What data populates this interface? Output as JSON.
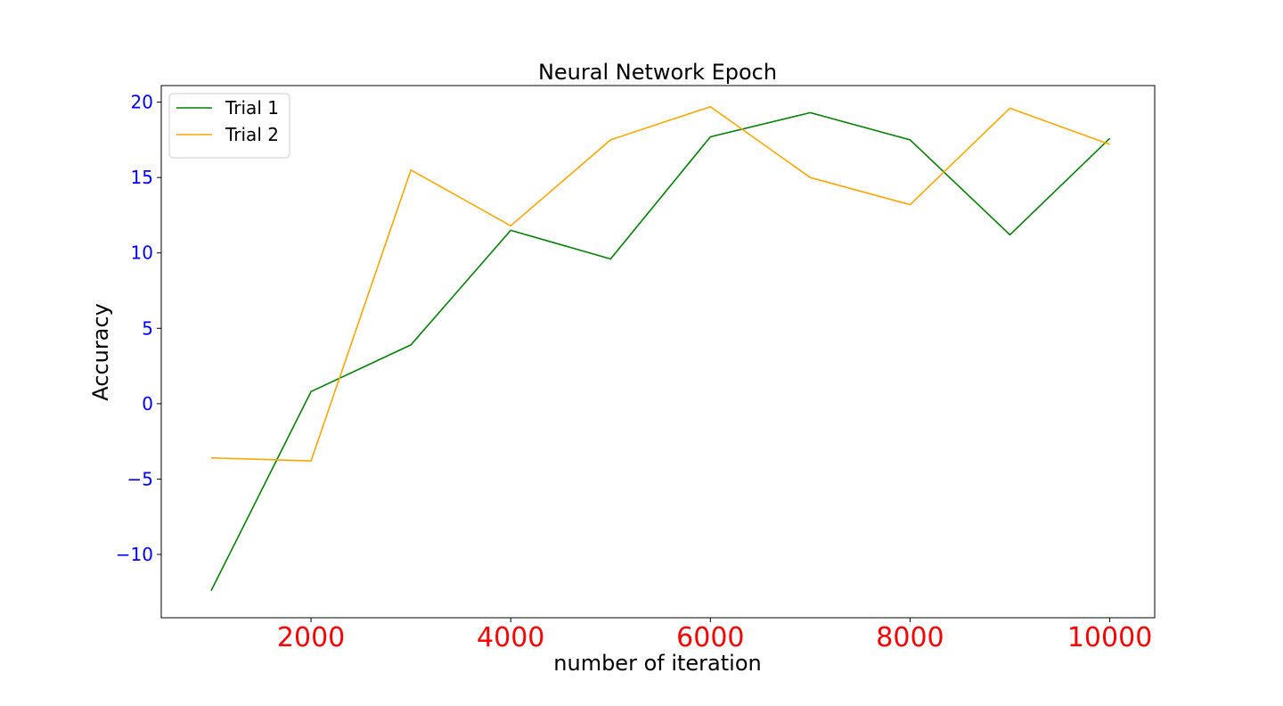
{
  "chart_data": {
    "type": "line",
    "title": "Neural Network Epoch",
    "xlabel": "number of iteration",
    "ylabel": "Accuracy",
    "x": [
      1000,
      2000,
      3000,
      4000,
      5000,
      6000,
      7000,
      8000,
      9000,
      10000
    ],
    "series": [
      {
        "name": "Trial 1",
        "color": "#008000",
        "values": [
          -12.4,
          0.8,
          3.9,
          11.5,
          9.6,
          17.7,
          19.3,
          17.5,
          11.2,
          17.6
        ]
      },
      {
        "name": "Trial 2",
        "color": "#FFA500",
        "values": [
          -3.6,
          -3.8,
          15.5,
          11.8,
          17.5,
          19.7,
          15.0,
          13.2,
          19.6,
          17.2
        ]
      }
    ],
    "xlim": [
      500,
      10450
    ],
    "ylim": [
      -14.2,
      21.1
    ],
    "xticks": [
      2000,
      4000,
      6000,
      8000,
      10000
    ],
    "xtick_labels": [
      "2000",
      "4000",
      "6000",
      "8000",
      "10000"
    ],
    "xtick_color": "#FF0000",
    "yticks": [
      -10,
      -5,
      0,
      5,
      10,
      15,
      20
    ],
    "ytick_labels": [
      "−10",
      "−5",
      "0",
      "5",
      "10",
      "15",
      "20"
    ],
    "ytick_color": "#0000FF",
    "grid": false,
    "legend_position": "top-left"
  }
}
